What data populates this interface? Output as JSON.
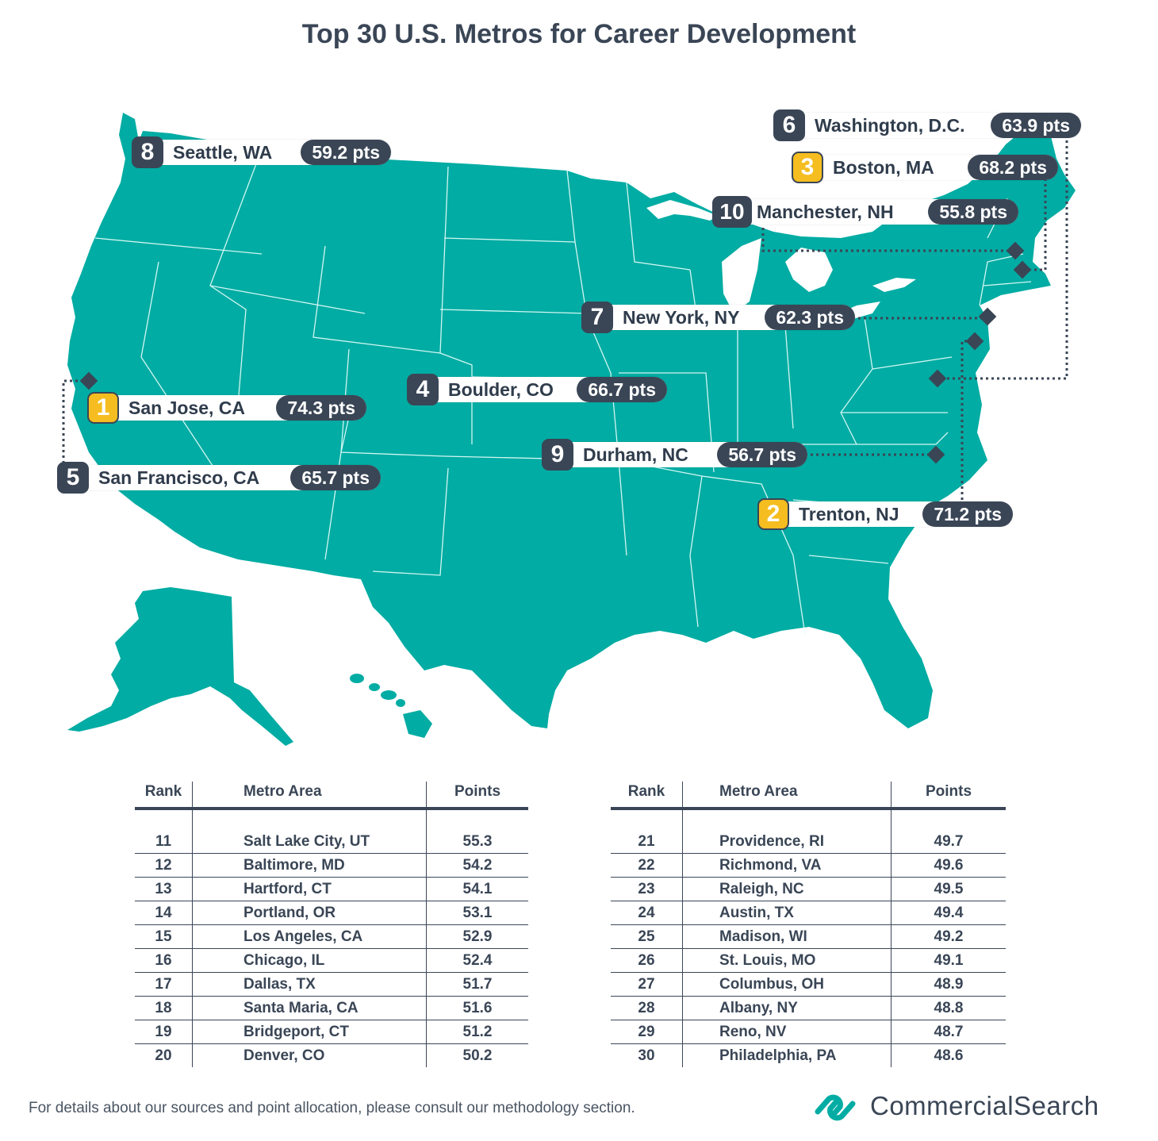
{
  "title": "Top 30 U.S. Metros for Career Development",
  "colors": {
    "land": "#00aca3",
    "dark": "#3a4656",
    "gold": "#f5bd1f",
    "white": "#ffffff"
  },
  "top10": [
    {
      "rank": "1",
      "city": "San Jose, CA",
      "points": "74.3 pts",
      "highlight": true
    },
    {
      "rank": "2",
      "city": "Trenton, NJ",
      "points": "71.2 pts",
      "highlight": true
    },
    {
      "rank": "3",
      "city": "Boston, MA",
      "points": "68.2 pts",
      "highlight": true
    },
    {
      "rank": "4",
      "city": "Boulder, CO",
      "points": "66.7 pts",
      "highlight": false
    },
    {
      "rank": "5",
      "city": "San Francisco, CA",
      "points": "65.7 pts",
      "highlight": false
    },
    {
      "rank": "6",
      "city": "Washington, D.C.",
      "points": "63.9 pts",
      "highlight": false
    },
    {
      "rank": "7",
      "city": "New York, NY",
      "points": "62.3 pts",
      "highlight": false
    },
    {
      "rank": "8",
      "city": "Seattle, WA",
      "points": "59.2 pts",
      "highlight": false
    },
    {
      "rank": "9",
      "city": "Durham, NC",
      "points": "56.7 pts",
      "highlight": false
    },
    {
      "rank": "10",
      "city": "Manchester, NH",
      "points": "55.8 pts",
      "highlight": false
    }
  ],
  "table": {
    "headers": {
      "rank": "Rank",
      "metro": "Metro Area",
      "points": "Points"
    },
    "left": [
      {
        "rank": "11",
        "metro": "Salt Lake City, UT",
        "points": "55.3"
      },
      {
        "rank": "12",
        "metro": "Baltimore, MD",
        "points": "54.2"
      },
      {
        "rank": "13",
        "metro": "Hartford, CT",
        "points": "54.1"
      },
      {
        "rank": "14",
        "metro": "Portland, OR",
        "points": "53.1"
      },
      {
        "rank": "15",
        "metro": "Los Angeles, CA",
        "points": "52.9"
      },
      {
        "rank": "16",
        "metro": "Chicago, IL",
        "points": "52.4"
      },
      {
        "rank": "17",
        "metro": "Dallas, TX",
        "points": "51.7"
      },
      {
        "rank": "18",
        "metro": "Santa Maria, CA",
        "points": "51.6"
      },
      {
        "rank": "19",
        "metro": "Bridgeport, CT",
        "points": "51.2"
      },
      {
        "rank": "20",
        "metro": "Denver, CO",
        "points": "50.2"
      }
    ],
    "right": [
      {
        "rank": "21",
        "metro": "Providence, RI",
        "points": "49.7"
      },
      {
        "rank": "22",
        "metro": "Richmond, VA",
        "points": "49.6"
      },
      {
        "rank": "23",
        "metro": "Raleigh, NC",
        "points": "49.5"
      },
      {
        "rank": "24",
        "metro": "Austin, TX",
        "points": "49.4"
      },
      {
        "rank": "25",
        "metro": "Madison, WI",
        "points": "49.2"
      },
      {
        "rank": "26",
        "metro": "St. Louis, MO",
        "points": "49.1"
      },
      {
        "rank": "27",
        "metro": "Columbus, OH",
        "points": "48.9"
      },
      {
        "rank": "28",
        "metro": "Albany, NY",
        "points": "48.8"
      },
      {
        "rank": "29",
        "metro": "Reno, NV",
        "points": "48.7"
      },
      {
        "rank": "30",
        "metro": "Philadelphia, PA",
        "points": "48.6"
      }
    ]
  },
  "footer": {
    "note": "For details about our sources and point allocation, please consult our methodology section.",
    "brand": "CommercialSearch",
    "brand_icon": "chain-link-logo-icon"
  }
}
